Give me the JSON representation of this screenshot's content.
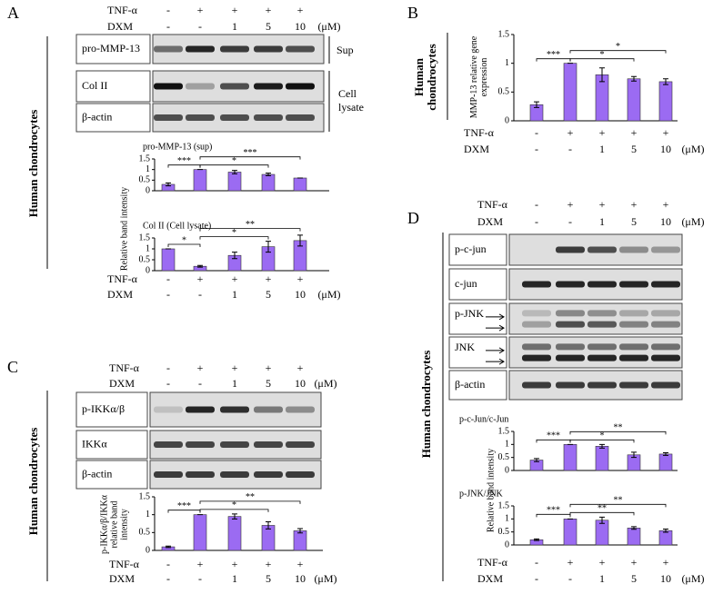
{
  "treatment": {
    "rows": [
      {
        "label": "TNF-α",
        "values": [
          "-",
          "+",
          "+",
          "+",
          "+"
        ]
      },
      {
        "label": "DXM",
        "values": [
          "-",
          "-",
          "1",
          "5",
          "10"
        ]
      }
    ],
    "unit": "(μM)"
  },
  "side_label": "Human chondrocytes",
  "panels": {
    "A": {
      "letter": "A",
      "blots": [
        "pro-MMP-13",
        "Col II",
        "β-actin"
      ],
      "fractions": [
        "Sup",
        "Cell lysate"
      ]
    },
    "B": {
      "letter": "B"
    },
    "C": {
      "letter": "C",
      "blots": [
        "p-IKKα/β",
        "IKKα",
        "β-actin"
      ]
    },
    "D": {
      "letter": "D",
      "blots": [
        "p-c-jun",
        "c-jun",
        "p-JNK",
        "JNK",
        "β-actin"
      ]
    }
  },
  "chart_data": [
    {
      "type": "bar",
      "title": "pro-MMP-13 (sup)",
      "color": "#9b6bf2",
      "values": [
        0.3,
        1,
        0.88,
        0.77,
        0.6
      ],
      "errors": [
        0.07,
        0,
        0.08,
        0.06,
        0
      ],
      "ylim": [
        0,
        1.5
      ],
      "yticks": [
        0,
        0.5,
        1,
        1.5
      ],
      "annotations": [
        "***",
        "*",
        "***"
      ]
    },
    {
      "type": "bar",
      "title": "Col II (Cell lysate)",
      "ylabel": "Relative band intensity",
      "color": "#9b6bf2",
      "values": [
        1,
        0.2,
        0.7,
        1.1,
        1.38
      ],
      "errors": [
        0,
        0.04,
        0.15,
        0.25,
        0.25
      ],
      "ylim": [
        0,
        1.5
      ],
      "yticks": [
        0,
        0.5,
        1,
        1.5
      ],
      "annotations": [
        "*",
        "*",
        "**"
      ]
    },
    {
      "type": "bar",
      "ylabel": "MMP-13 relative gene expression",
      "color": "#9b6bf2",
      "values": [
        0.28,
        1,
        0.8,
        0.73,
        0.68
      ],
      "errors": [
        0.05,
        0,
        0.12,
        0.04,
        0.05
      ],
      "ylim": [
        0,
        1.5
      ],
      "yticks": [
        0,
        0.5,
        1,
        1.5
      ],
      "annotations": [
        "***",
        "*",
        "*"
      ]
    },
    {
      "type": "bar",
      "ylabel": "p-IKKα/β/IKKα relative band intensity",
      "color": "#9b6bf2",
      "values": [
        0.1,
        1,
        0.95,
        0.7,
        0.55
      ],
      "errors": [
        0.02,
        0,
        0.07,
        0.1,
        0.06
      ],
      "ylim": [
        0,
        1.5
      ],
      "yticks": [
        0,
        0.5,
        1,
        1.5
      ],
      "annotations": [
        "***",
        "*",
        "**"
      ]
    },
    {
      "type": "bar",
      "title": "p-c-Jun/c-Jun",
      "color": "#9b6bf2",
      "values": [
        0.4,
        1,
        0.93,
        0.6,
        0.63
      ],
      "errors": [
        0.06,
        0,
        0.07,
        0.1,
        0.05
      ],
      "ylim": [
        0,
        1.5
      ],
      "yticks": [
        0,
        0.5,
        1,
        1.5
      ],
      "annotations": [
        "***",
        "*",
        "**"
      ]
    },
    {
      "type": "bar",
      "title": "p-JNK/JNK",
      "ylabel": "Relative band intensity",
      "color": "#9b6bf2",
      "values": [
        0.2,
        1,
        0.95,
        0.65,
        0.55
      ],
      "errors": [
        0.03,
        0,
        0.12,
        0.05,
        0.06
      ],
      "ylim": [
        0,
        1.5
      ],
      "yticks": [
        0,
        0.5,
        1,
        1.5
      ],
      "annotations": [
        "***",
        "**",
        "**"
      ]
    }
  ]
}
